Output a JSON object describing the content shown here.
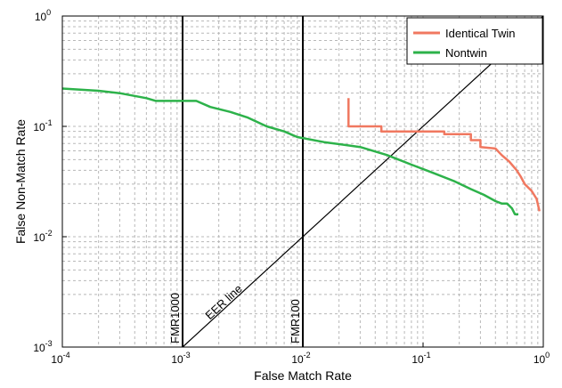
{
  "chart_data": {
    "type": "line",
    "xlabel": "False Match Rate",
    "ylabel": "False Non-Match Rate",
    "xscale": "log",
    "yscale": "log",
    "xlim": [
      0.0001,
      1
    ],
    "ylim": [
      0.001,
      1
    ],
    "grid": true,
    "legend_position": "top-right",
    "x_ticks": [
      {
        "base": "10",
        "exp": "-4",
        "value": 0.0001
      },
      {
        "base": "10",
        "exp": "-3",
        "value": 0.001
      },
      {
        "base": "10",
        "exp": "-2",
        "value": 0.01
      },
      {
        "base": "10",
        "exp": "-1",
        "value": 0.1
      },
      {
        "base": "10",
        "exp": "0",
        "value": 1
      }
    ],
    "y_ticks": [
      {
        "base": "10",
        "exp": "-3",
        "value": 0.001
      },
      {
        "base": "10",
        "exp": "-2",
        "value": 0.01
      },
      {
        "base": "10",
        "exp": "-1",
        "value": 0.1
      },
      {
        "base": "10",
        "exp": "0",
        "value": 1
      }
    ],
    "series": [
      {
        "name": "Identical Twin",
        "color": "#f07860",
        "points": [
          [
            0.024,
            0.18
          ],
          [
            0.024,
            0.1
          ],
          [
            0.045,
            0.1
          ],
          [
            0.045,
            0.09
          ],
          [
            0.15,
            0.09
          ],
          [
            0.15,
            0.085
          ],
          [
            0.25,
            0.085
          ],
          [
            0.25,
            0.075
          ],
          [
            0.3,
            0.075
          ],
          [
            0.3,
            0.065
          ],
          [
            0.4,
            0.063
          ],
          [
            0.45,
            0.055
          ],
          [
            0.52,
            0.048
          ],
          [
            0.6,
            0.04
          ],
          [
            0.65,
            0.035
          ],
          [
            0.7,
            0.03
          ],
          [
            0.8,
            0.026
          ],
          [
            0.88,
            0.022
          ],
          [
            0.93,
            0.017
          ]
        ]
      },
      {
        "name": "Nontwin",
        "color": "#2db24a",
        "points": [
          [
            0.0001,
            0.22
          ],
          [
            0.0002,
            0.21
          ],
          [
            0.0003,
            0.2
          ],
          [
            0.0005,
            0.18
          ],
          [
            0.0006,
            0.17
          ],
          [
            0.0013,
            0.17
          ],
          [
            0.0017,
            0.15
          ],
          [
            0.0025,
            0.135
          ],
          [
            0.0035,
            0.12
          ],
          [
            0.005,
            0.1
          ],
          [
            0.007,
            0.09
          ],
          [
            0.009,
            0.08
          ],
          [
            0.015,
            0.072
          ],
          [
            0.03,
            0.065
          ],
          [
            0.05,
            0.055
          ],
          [
            0.08,
            0.045
          ],
          [
            0.12,
            0.038
          ],
          [
            0.18,
            0.032
          ],
          [
            0.25,
            0.027
          ],
          [
            0.32,
            0.024
          ],
          [
            0.4,
            0.021
          ],
          [
            0.45,
            0.02
          ],
          [
            0.5,
            0.02
          ],
          [
            0.55,
            0.018
          ],
          [
            0.58,
            0.016
          ],
          [
            0.62,
            0.016
          ]
        ]
      }
    ],
    "reference_lines": [
      {
        "label": "FMR1000",
        "type": "vertical",
        "x": 0.001
      },
      {
        "label": "FMR100",
        "type": "vertical",
        "x": 0.01
      },
      {
        "label": "EER line",
        "type": "diagonal",
        "from": [
          0.001,
          0.001
        ],
        "to": [
          1,
          1
        ]
      }
    ]
  }
}
